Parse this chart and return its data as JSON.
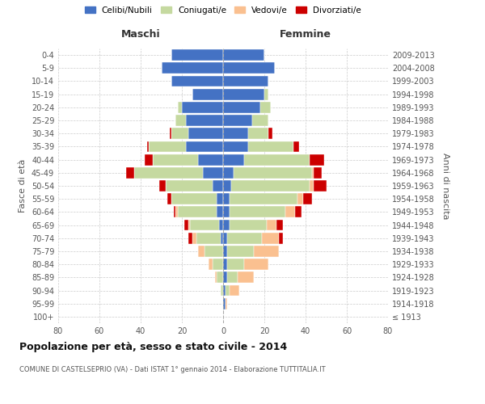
{
  "age_groups": [
    "100+",
    "95-99",
    "90-94",
    "85-89",
    "80-84",
    "75-79",
    "70-74",
    "65-69",
    "60-64",
    "55-59",
    "50-54",
    "45-49",
    "40-44",
    "35-39",
    "30-34",
    "25-29",
    "20-24",
    "15-19",
    "10-14",
    "5-9",
    "0-4"
  ],
  "birth_years": [
    "≤ 1913",
    "1914-1918",
    "1919-1923",
    "1924-1928",
    "1929-1933",
    "1934-1938",
    "1939-1943",
    "1944-1948",
    "1949-1953",
    "1954-1958",
    "1959-1963",
    "1964-1968",
    "1969-1973",
    "1974-1978",
    "1979-1983",
    "1984-1988",
    "1989-1993",
    "1994-1998",
    "1999-2003",
    "2004-2008",
    "2009-2013"
  ],
  "maschi": {
    "celibe": [
      0,
      0,
      0,
      0,
      0,
      0,
      1,
      2,
      3,
      3,
      5,
      10,
      12,
      18,
      17,
      18,
      20,
      15,
      25,
      30,
      25
    ],
    "coniugato": [
      0,
      0,
      1,
      3,
      5,
      9,
      12,
      14,
      19,
      22,
      23,
      33,
      22,
      18,
      8,
      5,
      2,
      0,
      0,
      0,
      0
    ],
    "vedovo": [
      0,
      0,
      0,
      1,
      2,
      3,
      2,
      1,
      1,
      0,
      0,
      0,
      0,
      0,
      0,
      0,
      0,
      0,
      0,
      0,
      0
    ],
    "divorziato": [
      0,
      0,
      0,
      0,
      0,
      0,
      2,
      2,
      1,
      2,
      3,
      4,
      4,
      1,
      1,
      0,
      0,
      0,
      0,
      0,
      0
    ]
  },
  "femmine": {
    "nubile": [
      0,
      1,
      1,
      2,
      2,
      2,
      2,
      3,
      3,
      3,
      4,
      5,
      10,
      12,
      12,
      14,
      18,
      20,
      22,
      25,
      20
    ],
    "coniugata": [
      0,
      0,
      2,
      5,
      8,
      13,
      17,
      18,
      27,
      33,
      38,
      38,
      32,
      22,
      10,
      8,
      5,
      2,
      0,
      0,
      0
    ],
    "vedova": [
      0,
      1,
      5,
      8,
      12,
      12,
      8,
      5,
      5,
      3,
      2,
      1,
      0,
      0,
      0,
      0,
      0,
      0,
      0,
      0,
      0
    ],
    "divorziata": [
      0,
      0,
      0,
      0,
      0,
      0,
      2,
      3,
      3,
      4,
      6,
      4,
      7,
      3,
      2,
      0,
      0,
      0,
      0,
      0,
      0
    ]
  },
  "colors": {
    "celibe": "#4472C4",
    "coniugato": "#C5D9A0",
    "vedovo": "#FAC090",
    "divorziato": "#CC0000"
  },
  "legend_labels": [
    "Celibi/Nubili",
    "Coniugati/e",
    "Vedovi/e",
    "Divorziati/e"
  ],
  "title": "Popolazione per età, sesso e stato civile - 2014",
  "subtitle": "COMUNE DI CASTELSEPRIO (VA) - Dati ISTAT 1° gennaio 2014 - Elaborazione TUTTITALIA.IT",
  "ylabel_left": "Fasce di età",
  "ylabel_right": "Anni di nascita",
  "xlabel_left": "Maschi",
  "xlabel_right": "Femmine",
  "xlim": 80,
  "background_color": "#ffffff",
  "grid_color": "#cccccc"
}
